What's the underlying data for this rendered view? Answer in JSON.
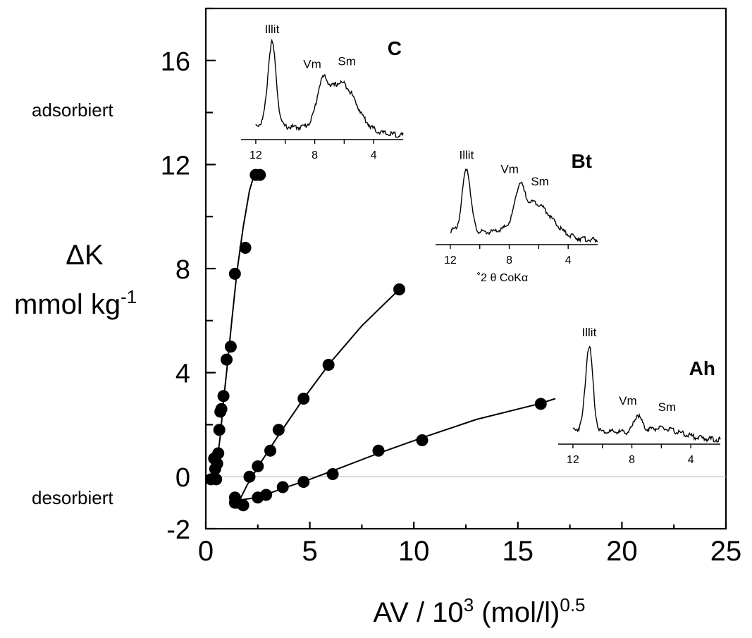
{
  "chart_data": {
    "type": "scatter",
    "xlabel": "AV  /  10",
    "xlabel_sup": "3",
    "xlabel_tail": " (mol/l)",
    "xlabel_tail_sup": "0.5",
    "ylabel_line1": "ΔK",
    "ylabel_line2": "mmol kg",
    "ylabel_line2_sup": "-1",
    "side_label_top": "adsorbiert",
    "side_label_bottom": "desorbiert",
    "xlim": [
      0,
      25
    ],
    "ylim": [
      -2,
      18
    ],
    "xticks": [
      0,
      5,
      10,
      15,
      20,
      25
    ],
    "yticks": [
      -2,
      0,
      4,
      8,
      12,
      16
    ],
    "zero_reference_line": true,
    "grid": false,
    "series": [
      {
        "points": [
          [
            0.25,
            -0.1
          ],
          [
            0.4,
            0.7
          ],
          [
            0.45,
            0.3
          ],
          [
            0.5,
            -0.1
          ],
          [
            0.55,
            0.5
          ],
          [
            0.6,
            0.9
          ],
          [
            0.65,
            1.8
          ],
          [
            0.7,
            2.5
          ],
          [
            0.75,
            2.6
          ],
          [
            0.85,
            3.1
          ],
          [
            1.0,
            4.5
          ],
          [
            1.2,
            5.0
          ],
          [
            1.4,
            7.8
          ],
          [
            1.9,
            8.8
          ],
          [
            2.4,
            11.6
          ],
          [
            2.6,
            11.6
          ]
        ],
        "curve": [
          [
            0.35,
            -0.2
          ],
          [
            0.55,
            0.6
          ],
          [
            0.7,
            1.6
          ],
          [
            0.85,
            2.9
          ],
          [
            1.05,
            4.4
          ],
          [
            1.25,
            6.0
          ],
          [
            1.5,
            7.9
          ],
          [
            1.8,
            9.6
          ],
          [
            2.1,
            11.0
          ],
          [
            2.4,
            11.8
          ]
        ]
      },
      {
        "points": [
          [
            1.4,
            -1.0
          ],
          [
            2.1,
            0.0
          ],
          [
            2.5,
            0.4
          ],
          [
            3.1,
            1.0
          ],
          [
            3.5,
            1.8
          ],
          [
            4.7,
            3.0
          ],
          [
            5.9,
            4.3
          ],
          [
            9.3,
            7.2
          ]
        ],
        "curve": [
          [
            1.5,
            -1.1
          ],
          [
            2.0,
            -0.3
          ],
          [
            2.6,
            0.5
          ],
          [
            3.5,
            1.6
          ],
          [
            4.7,
            3.0
          ],
          [
            6.0,
            4.4
          ],
          [
            7.5,
            5.8
          ],
          [
            9.3,
            7.2
          ]
        ]
      },
      {
        "points": [
          [
            1.4,
            -0.8
          ],
          [
            1.5,
            -1.0
          ],
          [
            1.8,
            -1.1
          ],
          [
            2.5,
            -0.8
          ],
          [
            2.9,
            -0.7
          ],
          [
            3.7,
            -0.4
          ],
          [
            4.7,
            -0.2
          ],
          [
            6.1,
            0.1
          ],
          [
            8.3,
            1.0
          ],
          [
            10.4,
            1.4
          ],
          [
            16.1,
            2.8
          ]
        ],
        "curve": [
          [
            1.6,
            -0.9
          ],
          [
            2.5,
            -0.8
          ],
          [
            3.7,
            -0.45
          ],
          [
            5.0,
            -0.1
          ],
          [
            6.5,
            0.35
          ],
          [
            8.3,
            0.9
          ],
          [
            10.4,
            1.5
          ],
          [
            13.0,
            2.2
          ],
          [
            16.0,
            2.8
          ],
          [
            16.8,
            3.0
          ]
        ]
      }
    ],
    "insets": [
      {
        "name": "C",
        "peak_labels": [
          "Illit",
          "Vm",
          "Sm"
        ],
        "x_ticks": [
          "12",
          "8",
          "4"
        ],
        "x_range": [
          13,
          2
        ],
        "peaks": [
          [
            10.9,
            0.95,
            0.28
          ],
          [
            7.5,
            0.35,
            0.35
          ],
          [
            6.2,
            0.55,
            1.0
          ]
        ],
        "baseline_start": 0.12,
        "baseline_end": 0.0
      },
      {
        "name": "Bt",
        "peak_labels": [
          "Illit",
          "Vm",
          "Sm"
        ],
        "x_ticks": [
          "12",
          "8",
          "4"
        ],
        "x_range": [
          13,
          2
        ],
        "axis_label": "˚2 θ CoKα",
        "peaks": [
          [
            10.9,
            0.75,
            0.28
          ],
          [
            7.3,
            0.35,
            0.3
          ],
          [
            6.3,
            0.4,
            1.1
          ]
        ],
        "baseline_start": 0.12,
        "baseline_end": 0.0
      },
      {
        "name": "Ah",
        "peak_labels": [
          "Illit",
          "Vm",
          "Sm"
        ],
        "x_ticks": [
          "12",
          "8",
          "4"
        ],
        "x_range": [
          13,
          2
        ],
        "peaks": [
          [
            10.9,
            0.95,
            0.25
          ],
          [
            7.6,
            0.18,
            0.25
          ],
          [
            6.0,
            0.08,
            1.2
          ]
        ],
        "baseline_start": 0.12,
        "baseline_end": 0.0
      }
    ]
  }
}
